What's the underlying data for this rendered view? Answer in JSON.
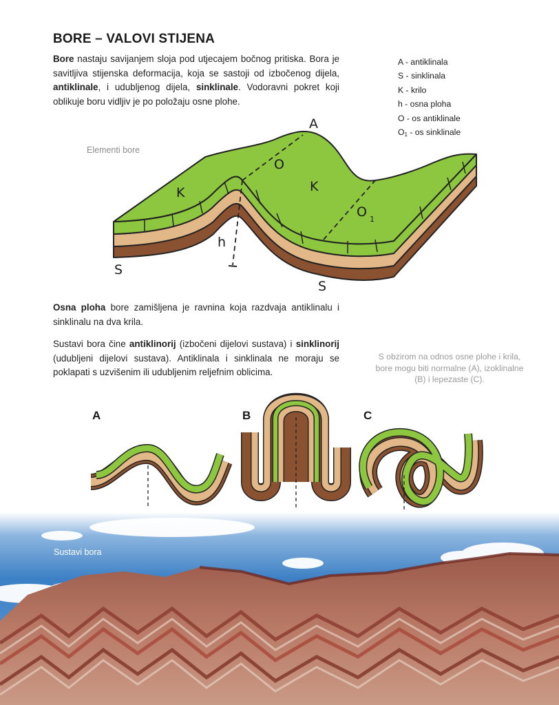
{
  "title": "BORE – VALOVI STIJENA",
  "intro": {
    "b1": "Bore",
    "t1": " nastaju savijanjem sloja pod utjecajem bočnog pritiska. Bora je savitljiva stijenska deformacija, koja se sastoji od izbočenog dijela, ",
    "b2": "antiklinale",
    "t2": ", i udubljenog dijela, ",
    "b3": "sinklinale",
    "t3": ". Vodoravni pokret koji oblikuje boru vidljiv je po položaju osne plohe."
  },
  "legend": {
    "a": "A - antiklinala",
    "s": "S - sinklinala",
    "k": "K - krilo",
    "h": "h - osna ploha",
    "o": "O - os antiklinale",
    "o1_pre": "O",
    "o1_sub": "1",
    "o1_post": " - os sinklinale"
  },
  "diagram": {
    "caption": "Elementi bore",
    "labels": {
      "a": "A",
      "o": "O",
      "k1": "K",
      "k2": "K",
      "o1": "O",
      "o1_sub": "1",
      "h": "h",
      "s1": "S",
      "s2": "S"
    }
  },
  "osna": {
    "b": "Osna ploha",
    "t": " bore zamišljena je ravnina koja razdvaja antiklinalu i sinklinalu na dva krila."
  },
  "sustavi": {
    "t1": "Sustavi bora čine ",
    "b1": "antiklinorij",
    "t2": " (izbočeni dijelovi sustava) i ",
    "b2": "sinklinorij",
    "t3": " (udubljeni dijelovi sustava). Antiklinala i sinklinala ne moraju se poklapati s uzvišenim ili udubljenim reljefnim oblicima."
  },
  "side_note": "S obzirom na odnos osne plohe i krila, bore mogu biti normalne (A), izoklinalne (B) i lepezaste (C).",
  "folds": {
    "a": "A",
    "b": "B",
    "c": "C"
  },
  "photo_caption": "Sustavi bora",
  "colors": {
    "green": "#8dc63f",
    "beige": "#e2b888",
    "brown": "#8b5232",
    "outline": "#222222",
    "sky": "#3b7fc4"
  }
}
